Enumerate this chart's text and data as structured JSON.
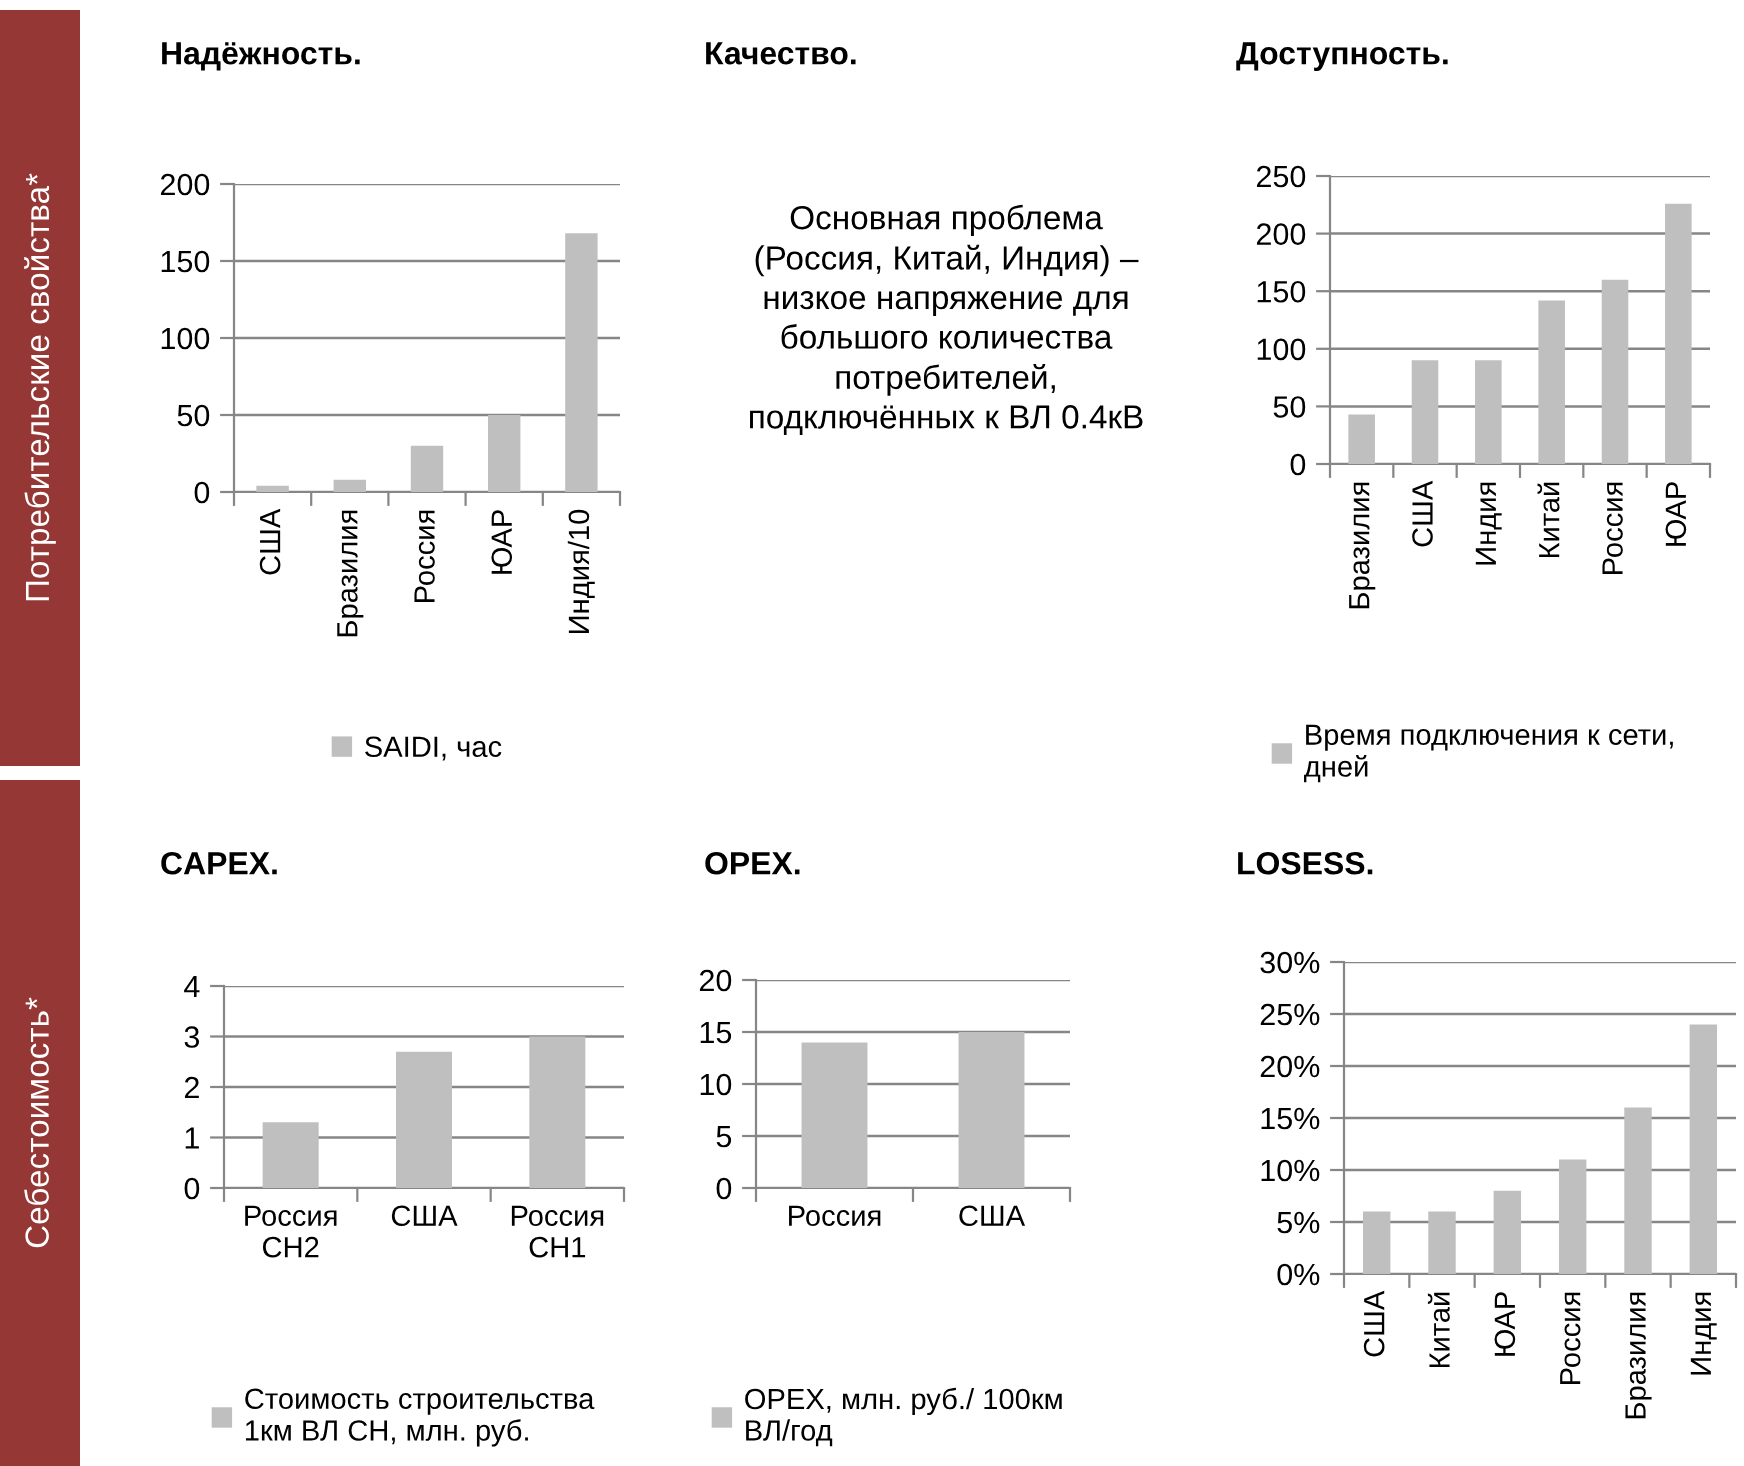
{
  "chart_data": [
    {
      "type": "bar",
      "title": "Надёжность.",
      "categories": [
        "США",
        "Бразилия",
        "Россия",
        "ЮАР",
        "Индия/10"
      ],
      "series": [
        {
          "name": "SAIDI, час",
          "color": "#bfbfbf",
          "values": [
            4,
            8,
            30,
            50,
            168
          ]
        }
      ],
      "ylim": [
        0,
        200
      ],
      "yticks": [
        0,
        50,
        100,
        150,
        200
      ],
      "grid": "y",
      "legend": "bottom",
      "annotations": [
        "Потребительские свойства*"
      ]
    },
    {
      "type": "other",
      "title": "Качество.",
      "annotations": [
        "Основная проблема\n(Россия, Китай, Индия) –\nнизкое напряжение для\nбольшого количества\nпотребителей,\nподключённых к ВЛ 0.4кВ"
      ]
    },
    {
      "type": "bar",
      "title": "Доступность.",
      "categories": [
        "Бразилия",
        "США",
        "Индия",
        "Китай",
        "Россия",
        "ЮАР"
      ],
      "series": [
        {
          "name": "Время подключения к сети,\nдней",
          "color": "#bfbfbf",
          "values": [
            43,
            90,
            90,
            142,
            160,
            226
          ]
        }
      ],
      "ylim": [
        0,
        250
      ],
      "yticks": [
        0,
        50,
        100,
        150,
        200,
        250
      ],
      "grid": "y",
      "legend": "bottom"
    },
    {
      "type": "bar",
      "title": "CAPEX.",
      "categories": [
        "Россия\nСН2",
        "США",
        "Россия\nСН1"
      ],
      "series": [
        {
          "name": "Стоимость строительства\n1км ВЛ СН, млн. руб.",
          "color": "#bfbfbf",
          "values": [
            1.3,
            2.7,
            3.0
          ]
        }
      ],
      "ylim": [
        0,
        4
      ],
      "yticks": [
        0,
        1,
        2,
        3,
        4
      ],
      "grid": "y",
      "legend": "bottom",
      "annotations": [
        "Себестоимость*"
      ]
    },
    {
      "type": "bar",
      "title": "OPEX.",
      "categories": [
        "Россия",
        "США"
      ],
      "series": [
        {
          "name": "OPEX, млн. руб./ 100км\nВЛ/год",
          "color": "#bfbfbf",
          "values": [
            14,
            15
          ]
        }
      ],
      "ylim": [
        0,
        20
      ],
      "yticks": [
        0,
        5,
        10,
        15,
        20
      ],
      "grid": "y",
      "legend": "bottom"
    },
    {
      "type": "bar",
      "title": "LOSESS.",
      "categories": [
        "США",
        "Китай",
        "ЮАР",
        "Россия",
        "Бразилия",
        "Индия"
      ],
      "series": [
        {
          "color": "#bfbfbf",
          "values": [
            6,
            6,
            8,
            11,
            16,
            24
          ]
        }
      ],
      "ylim": [
        0,
        30
      ],
      "yticks": [
        {
          "value": 0,
          "label": "0%"
        },
        {
          "value": 5,
          "label": "5%"
        },
        {
          "value": 10,
          "label": "10%"
        },
        {
          "value": 15,
          "label": "15%"
        },
        {
          "value": 20,
          "label": "20%"
        },
        {
          "value": 25,
          "label": "25%"
        },
        {
          "value": 30,
          "label": "30%"
        }
      ],
      "grid": "y"
    }
  ]
}
